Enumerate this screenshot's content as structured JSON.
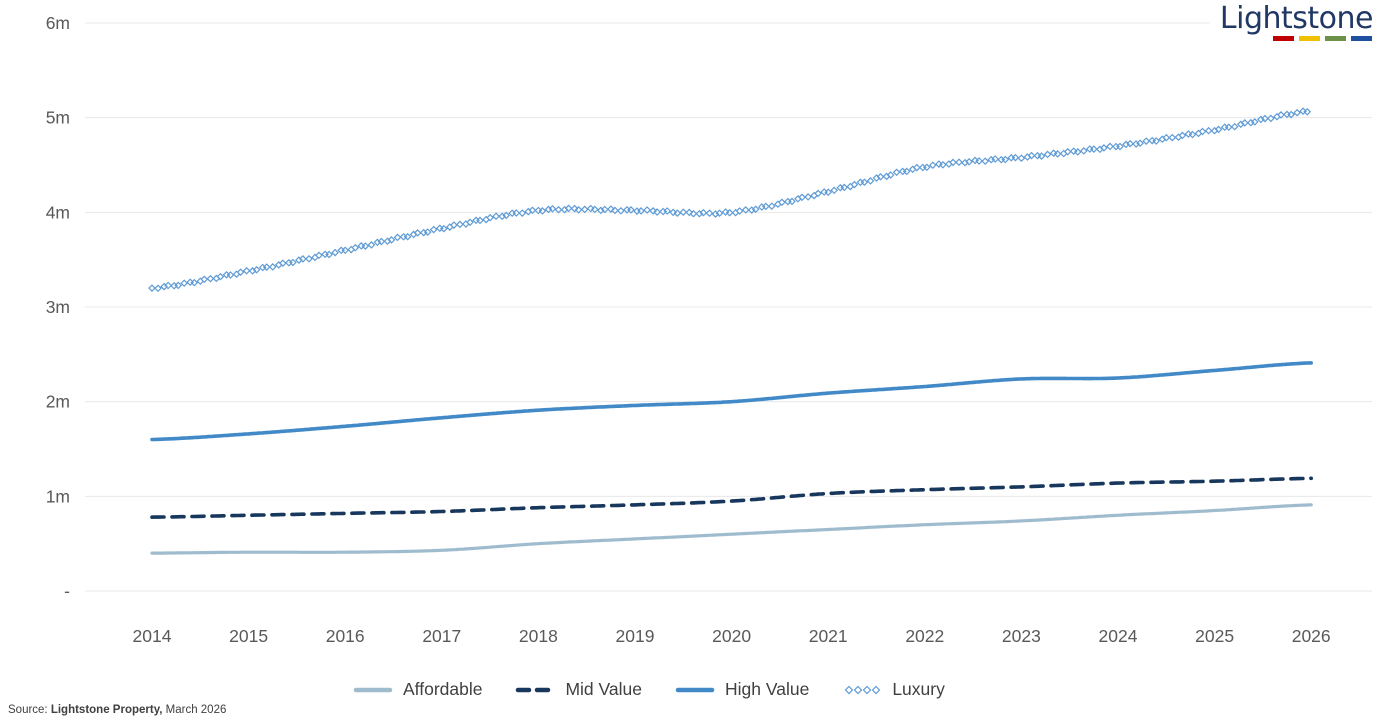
{
  "logo": {
    "text": "Lightstone",
    "underline_colors": [
      "#c00000",
      "#f0c000",
      "#6d9148",
      "#1f4fa0"
    ]
  },
  "source": {
    "prefix": "Source: ",
    "bold": "Lightstone Property,",
    "suffix": " March 2026"
  },
  "chart_data": {
    "type": "line",
    "title": "",
    "xlabel": "",
    "ylabel": "",
    "categories": [
      "2014",
      "2015",
      "2016",
      "2017",
      "2018",
      "2019",
      "2020",
      "2021",
      "2022",
      "2023",
      "2024",
      "2025",
      "2026"
    ],
    "ylim": [
      0,
      6
    ],
    "ytick_labels": [
      "-",
      "1m",
      "2m",
      "3m",
      "4m",
      "5m",
      "6m"
    ],
    "grid": "horizontal",
    "legend_position": "bottom",
    "axis_text_color": "#595959",
    "grid_color": "#e8e8e8",
    "series": [
      {
        "name": "Affordable",
        "style": "solid",
        "color": "#9fbccf",
        "width": 3.2,
        "values": [
          0.4,
          0.41,
          0.41,
          0.43,
          0.5,
          0.55,
          0.6,
          0.65,
          0.7,
          0.74,
          0.8,
          0.85,
          0.91
        ]
      },
      {
        "name": "Mid Value",
        "style": "dashed",
        "color": "#17375d",
        "width": 3.6,
        "values": [
          0.78,
          0.8,
          0.82,
          0.84,
          0.88,
          0.91,
          0.95,
          1.03,
          1.07,
          1.1,
          1.14,
          1.16,
          1.19
        ]
      },
      {
        "name": "High Value",
        "style": "solid",
        "color": "#4289c8",
        "width": 3.6,
        "values": [
          1.6,
          1.66,
          1.74,
          1.83,
          1.91,
          1.96,
          2.0,
          2.09,
          2.16,
          2.24,
          2.25,
          2.33,
          2.41
        ]
      },
      {
        "name": "Luxury",
        "style": "diamond-markers",
        "color": "#5f9bd5",
        "width": 1.2,
        "values": [
          3.2,
          3.38,
          3.6,
          3.83,
          4.02,
          4.02,
          4.0,
          4.22,
          4.48,
          4.58,
          4.7,
          4.87,
          5.07
        ]
      }
    ]
  }
}
